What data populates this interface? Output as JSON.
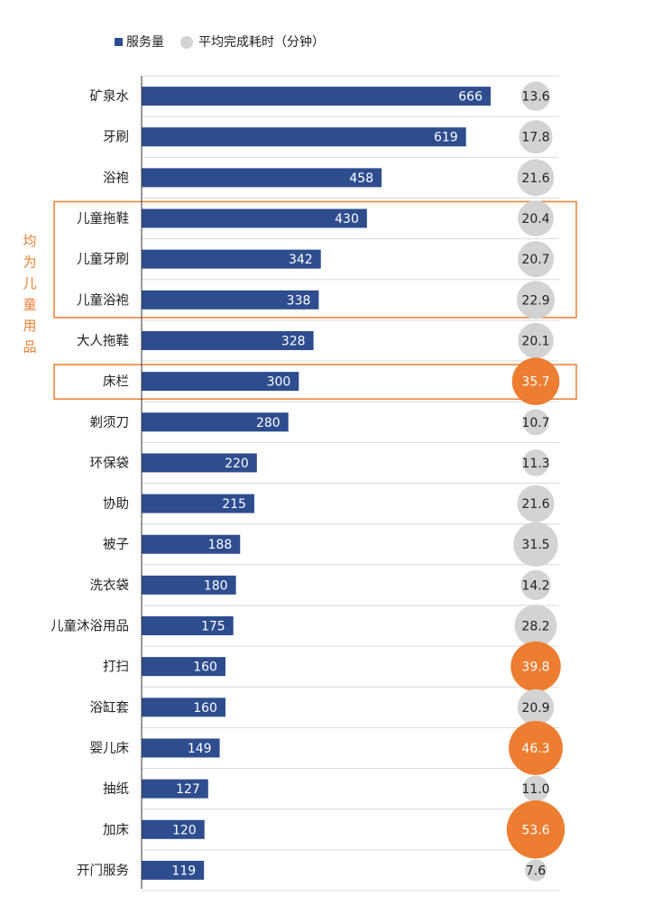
{
  "chart_data": {
    "type": "bar",
    "orientation": "horizontal",
    "legend_position": "top",
    "grid": "horizontal",
    "legend": {
      "bar": "服务量",
      "circle": "平均完成耗时（分钟）"
    },
    "series": [
      {
        "name": "服务量",
        "mark": "bar"
      },
      {
        "name": "平均完成耗时（分钟）",
        "mark": "circle"
      }
    ],
    "categories": [
      "矿泉水",
      "牙刷",
      "浴袍",
      "儿童拖鞋",
      "儿童牙刷",
      "儿童浴袍",
      "大人拖鞋",
      "床栏",
      "剃须刀",
      "环保袋",
      "协助",
      "被子",
      "洗衣袋",
      "儿童沐浴用品",
      "打扫",
      "浴缸套",
      "婴儿床",
      "抽纸",
      "加床",
      "开门服务"
    ],
    "values": [
      666,
      619,
      458,
      430,
      342,
      338,
      328,
      300,
      280,
      220,
      215,
      188,
      180,
      175,
      160,
      160,
      149,
      127,
      120,
      119
    ],
    "value_labels": [
      "666",
      "619",
      "458",
      "430",
      "342",
      "338",
      "328",
      "300",
      "280",
      "220",
      "215",
      "188",
      "180",
      "175",
      "160",
      "160",
      "149",
      "127",
      "120",
      "119"
    ],
    "times": [
      13.6,
      17.8,
      21.6,
      20.4,
      20.7,
      22.9,
      20.1,
      35.7,
      10.7,
      11.3,
      21.6,
      31.5,
      14.2,
      28.2,
      39.8,
      20.9,
      46.3,
      11.0,
      53.6,
      7.6
    ],
    "time_labels": [
      "13.6",
      "17.8",
      "21.6",
      "20.4",
      "20.7",
      "22.9",
      "20.1",
      "35.7",
      "10.7",
      "11.3",
      "21.6",
      "31.5",
      "14.2",
      "28.2",
      "39.8",
      "20.9",
      "46.3",
      "11.0",
      "53.6",
      "7.6"
    ],
    "highlight_threshold": 35,
    "annotations": [
      {
        "label": "均为儿童用品",
        "rows": [
          3,
          5
        ]
      },
      {
        "label": "",
        "rows": [
          7,
          7
        ]
      }
    ],
    "colors": {
      "bar": "#2e4d8f",
      "circle": "#d3d3d3",
      "circle_highlight": "#ed7d31",
      "annotation": "#ed7d31",
      "grid": "#d9d9d9",
      "axis": "#333333",
      "text": "#222222"
    }
  }
}
